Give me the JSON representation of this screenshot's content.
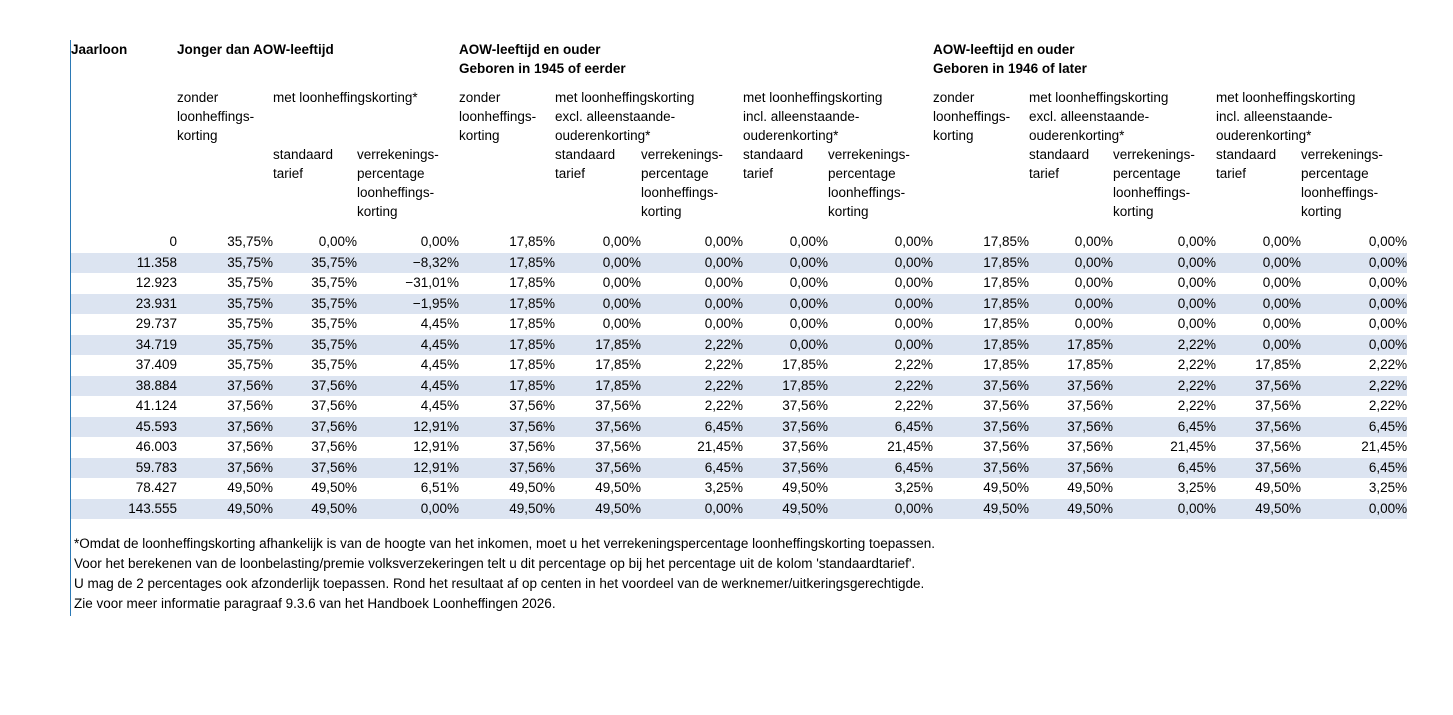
{
  "colors": {
    "border": "#2b79b5",
    "stripe": "#dce4f1",
    "text": "#000000"
  },
  "table": {
    "corner_label": "Jaarloon",
    "labels": {
      "zonder": "zonder\nloonheffings-\nkorting",
      "standaard": "standaard\ntarief",
      "verrekening": "verrekenings-\npercentage\nloonheffings-\nkorting"
    },
    "groups": [
      {
        "title": "Jonger dan AOW-leeftijd",
        "met": "met loonheffingskorting*"
      },
      {
        "title": "AOW-leeftijd en ouder\nGeboren in 1945 of eerder",
        "met_excl": "met loonheffingskorting\nexcl. alleenstaande-\nouderenkorting*",
        "met_incl": "met loonheffingskorting\nincl. alleenstaande-\nouderenkorting*"
      },
      {
        "title": "AOW-leeftijd en ouder\nGeboren in 1946 of later",
        "met_excl": "met loonheffingskorting\nexcl. alleenstaande-\nouderenkorting*",
        "met_incl": "met loonheffingskorting\nincl. alleenstaande-\nouderenkorting*"
      }
    ],
    "rows": [
      [
        "0",
        "35,75%",
        "0,00%",
        "0,00%",
        "17,85%",
        "0,00%",
        "0,00%",
        "0,00%",
        "0,00%",
        "17,85%",
        "0,00%",
        "0,00%",
        "0,00%",
        "0,00%"
      ],
      [
        "11.358",
        "35,75%",
        "35,75%",
        "−8,32%",
        "17,85%",
        "0,00%",
        "0,00%",
        "0,00%",
        "0,00%",
        "17,85%",
        "0,00%",
        "0,00%",
        "0,00%",
        "0,00%"
      ],
      [
        "12.923",
        "35,75%",
        "35,75%",
        "−31,01%",
        "17,85%",
        "0,00%",
        "0,00%",
        "0,00%",
        "0,00%",
        "17,85%",
        "0,00%",
        "0,00%",
        "0,00%",
        "0,00%"
      ],
      [
        "23.931",
        "35,75%",
        "35,75%",
        "−1,95%",
        "17,85%",
        "0,00%",
        "0,00%",
        "0,00%",
        "0,00%",
        "17,85%",
        "0,00%",
        "0,00%",
        "0,00%",
        "0,00%"
      ],
      [
        "29.737",
        "35,75%",
        "35,75%",
        "4,45%",
        "17,85%",
        "0,00%",
        "0,00%",
        "0,00%",
        "0,00%",
        "17,85%",
        "0,00%",
        "0,00%",
        "0,00%",
        "0,00%"
      ],
      [
        "34.719",
        "35,75%",
        "35,75%",
        "4,45%",
        "17,85%",
        "17,85%",
        "2,22%",
        "0,00%",
        "0,00%",
        "17,85%",
        "17,85%",
        "2,22%",
        "0,00%",
        "0,00%"
      ],
      [
        "37.409",
        "35,75%",
        "35,75%",
        "4,45%",
        "17,85%",
        "17,85%",
        "2,22%",
        "17,85%",
        "2,22%",
        "17,85%",
        "17,85%",
        "2,22%",
        "17,85%",
        "2,22%"
      ],
      [
        "38.884",
        "37,56%",
        "37,56%",
        "4,45%",
        "17,85%",
        "17,85%",
        "2,22%",
        "17,85%",
        "2,22%",
        "37,56%",
        "37,56%",
        "2,22%",
        "37,56%",
        "2,22%"
      ],
      [
        "41.124",
        "37,56%",
        "37,56%",
        "4,45%",
        "37,56%",
        "37,56%",
        "2,22%",
        "37,56%",
        "2,22%",
        "37,56%",
        "37,56%",
        "2,22%",
        "37,56%",
        "2,22%"
      ],
      [
        "45.593",
        "37,56%",
        "37,56%",
        "12,91%",
        "37,56%",
        "37,56%",
        "6,45%",
        "37,56%",
        "6,45%",
        "37,56%",
        "37,56%",
        "6,45%",
        "37,56%",
        "6,45%"
      ],
      [
        "46.003",
        "37,56%",
        "37,56%",
        "12,91%",
        "37,56%",
        "37,56%",
        "21,45%",
        "37,56%",
        "21,45%",
        "37,56%",
        "37,56%",
        "21,45%",
        "37,56%",
        "21,45%"
      ],
      [
        "59.783",
        "37,56%",
        "37,56%",
        "12,91%",
        "37,56%",
        "37,56%",
        "6,45%",
        "37,56%",
        "6,45%",
        "37,56%",
        "37,56%",
        "6,45%",
        "37,56%",
        "6,45%"
      ],
      [
        "78.427",
        "49,50%",
        "49,50%",
        "6,51%",
        "49,50%",
        "49,50%",
        "3,25%",
        "49,50%",
        "3,25%",
        "49,50%",
        "49,50%",
        "3,25%",
        "49,50%",
        "3,25%"
      ],
      [
        "143.555",
        "49,50%",
        "49,50%",
        "0,00%",
        "49,50%",
        "49,50%",
        "0,00%",
        "49,50%",
        "0,00%",
        "49,50%",
        "49,50%",
        "0,00%",
        "49,50%",
        "0,00%"
      ]
    ]
  },
  "footnote": {
    "lines": [
      "*Omdat de loonheffingskorting afhankelijk is van de hoogte van het inkomen, moet u het verrekeningspercentage loonheffingskorting toepassen.",
      "Voor het berekenen van de loonbelasting/premie volksverzekeringen telt u dit percentage op bij het percentage uit de kolom 'standaardtarief'.",
      "U mag de 2 percentages ook afzonderlijk toepassen. Rond het resultaat af op centen in het voordeel van de werknemer/uitkeringsgerechtigde.",
      "Zie voor meer informatie paragraaf 9.3.6 van het Handboek Loonheffingen 2026."
    ]
  }
}
